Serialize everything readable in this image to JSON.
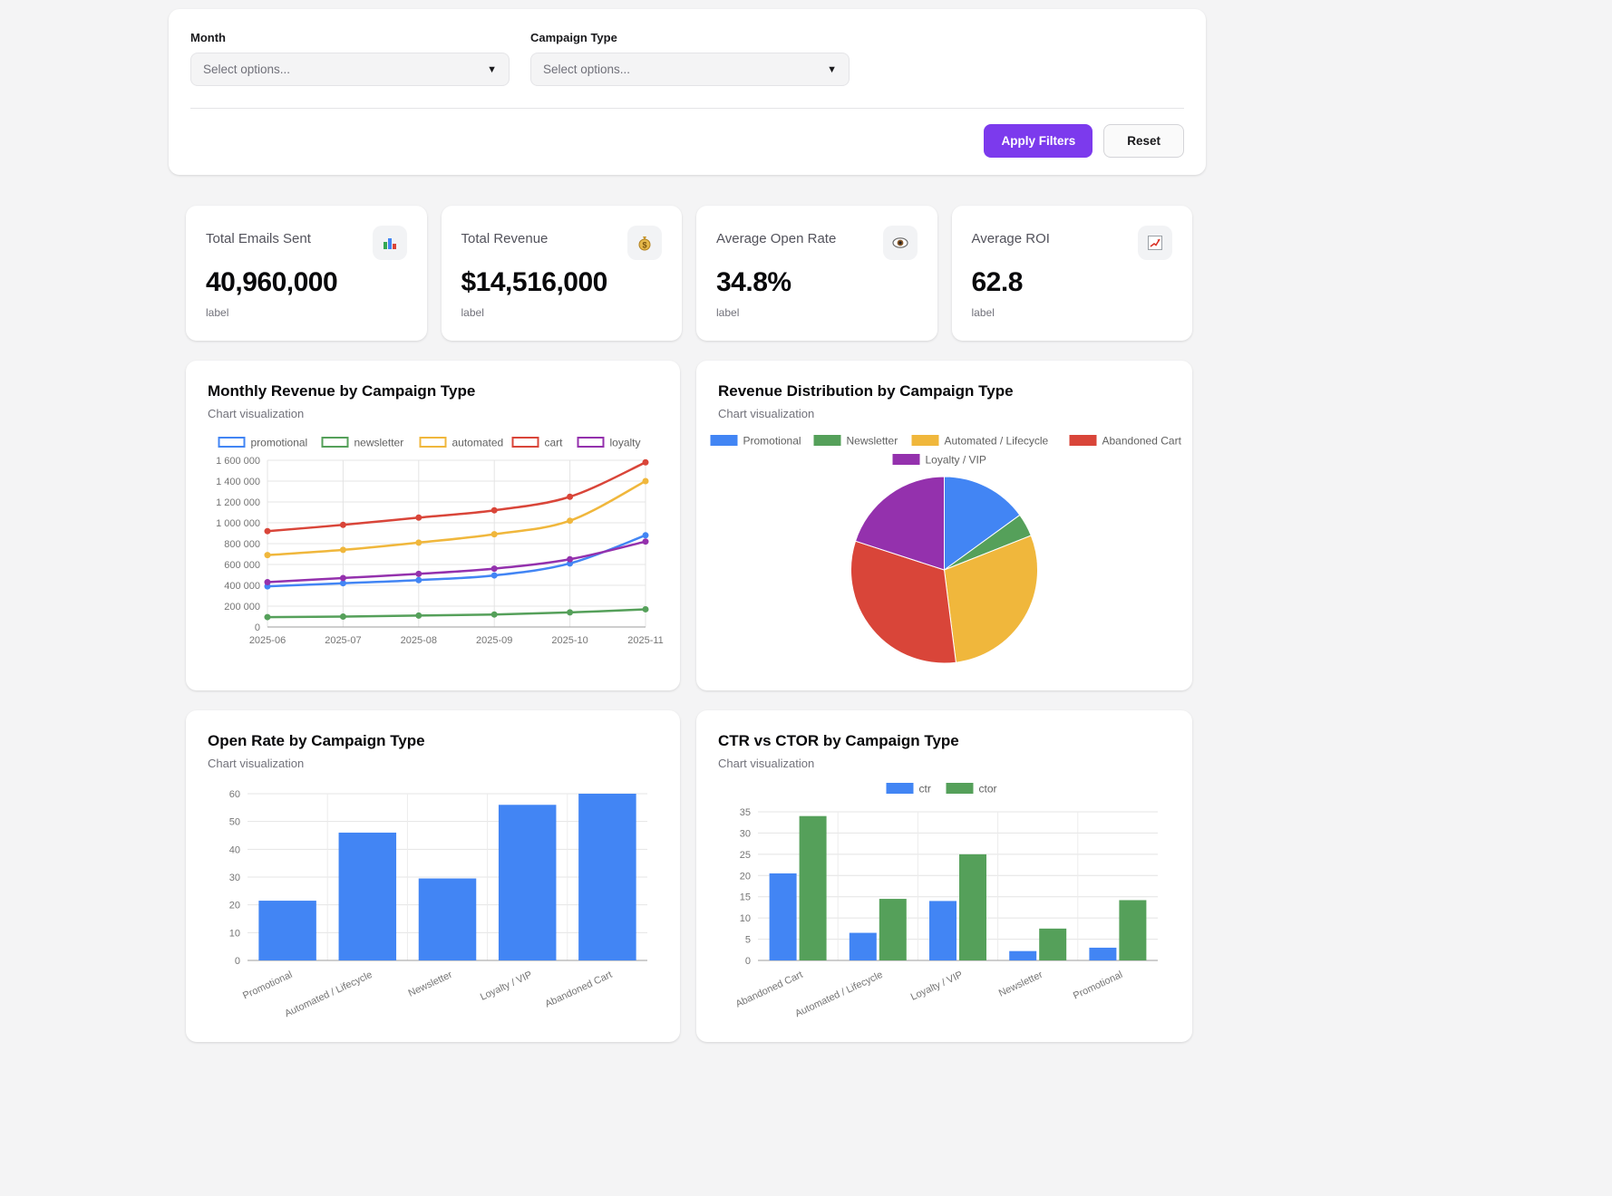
{
  "filters": {
    "month": {
      "label": "Month",
      "placeholder": "Select options..."
    },
    "campaign_type": {
      "label": "Campaign Type",
      "placeholder": "Select options..."
    },
    "apply_label": "Apply Filters",
    "reset_label": "Reset"
  },
  "kpis": [
    {
      "label": "Total Emails Sent",
      "value": "40,960,000",
      "sublabel": "label",
      "icon": "bar-chart"
    },
    {
      "label": "Total Revenue",
      "value": "$14,516,000",
      "sublabel": "label",
      "icon": "money-bag"
    },
    {
      "label": "Average Open Rate",
      "value": "34.8%",
      "sublabel": "label",
      "icon": "eye"
    },
    {
      "label": "Average ROI",
      "value": "62.8",
      "sublabel": "label",
      "icon": "chart-increasing"
    }
  ],
  "theme": {
    "accent": "#7c3aed",
    "page_bg": "#f4f4f5",
    "series_blue": "#4285f4",
    "series_green": "#55a05a",
    "series_yellow": "#f0b73c",
    "series_red": "#d94539",
    "series_purple": "#9431ad"
  },
  "chart_data": [
    {
      "type": "line",
      "title": "Monthly Revenue by Campaign Type",
      "subtitle": "Chart visualization",
      "x": [
        "2025-06",
        "2025-07",
        "2025-08",
        "2025-09",
        "2025-10",
        "2025-11"
      ],
      "series": [
        {
          "name": "promotional",
          "color": "#4285f4",
          "values": [
            390000,
            420000,
            450000,
            495000,
            610000,
            880000
          ]
        },
        {
          "name": "newsletter",
          "color": "#55a05a",
          "values": [
            95000,
            100000,
            110000,
            120000,
            140000,
            170000
          ]
        },
        {
          "name": "automated",
          "color": "#f0b73c",
          "values": [
            690000,
            740000,
            810000,
            890000,
            1020000,
            1400000
          ]
        },
        {
          "name": "cart",
          "color": "#d94539",
          "values": [
            920000,
            980000,
            1050000,
            1120000,
            1250000,
            1580000
          ]
        },
        {
          "name": "loyalty",
          "color": "#9431ad",
          "values": [
            430000,
            470000,
            510000,
            560000,
            650000,
            820000
          ]
        }
      ],
      "ylim": [
        0,
        1600000
      ],
      "ytick_step": 200000,
      "legend_position": "top",
      "grid": true
    },
    {
      "type": "pie",
      "title": "Revenue Distribution by Campaign Type",
      "subtitle": "Chart visualization",
      "labels": [
        "Promotional",
        "Newsletter",
        "Automated / Lifecycle",
        "Abandoned Cart",
        "Loyalty / VIP"
      ],
      "colors": [
        "#4285f4",
        "#55a05a",
        "#f0b73c",
        "#d94539",
        "#9431ad"
      ],
      "values": [
        15,
        4,
        29,
        32,
        20
      ],
      "value_unit": "% of total (estimated from pie angles)",
      "legend_position": "top"
    },
    {
      "type": "bar",
      "title": "Open Rate by Campaign Type",
      "subtitle": "Chart visualization",
      "categories": [
        "Promotional",
        "Automated / Lifecycle",
        "Newsletter",
        "Loyalty / VIP",
        "Abandoned Cart"
      ],
      "values": [
        21.5,
        46,
        29.5,
        56,
        60
      ],
      "color": "#4285f4",
      "ylim": [
        0,
        60
      ],
      "ytick_step": 10,
      "grid": true
    },
    {
      "type": "bar",
      "title": "CTR vs CTOR by Campaign Type",
      "subtitle": "Chart visualization",
      "categories": [
        "Abandoned Cart",
        "Automated / Lifecycle",
        "Loyalty / VIP",
        "Newsletter",
        "Promotional"
      ],
      "series": [
        {
          "name": "ctr",
          "color": "#4285f4",
          "values": [
            20.5,
            6.5,
            14,
            2.2,
            3
          ]
        },
        {
          "name": "ctor",
          "color": "#55a05a",
          "values": [
            34,
            14.5,
            25,
            7.5,
            14.2
          ]
        }
      ],
      "ylim": [
        0,
        35
      ],
      "ytick_step": 5,
      "legend_position": "top",
      "grid": true
    }
  ]
}
